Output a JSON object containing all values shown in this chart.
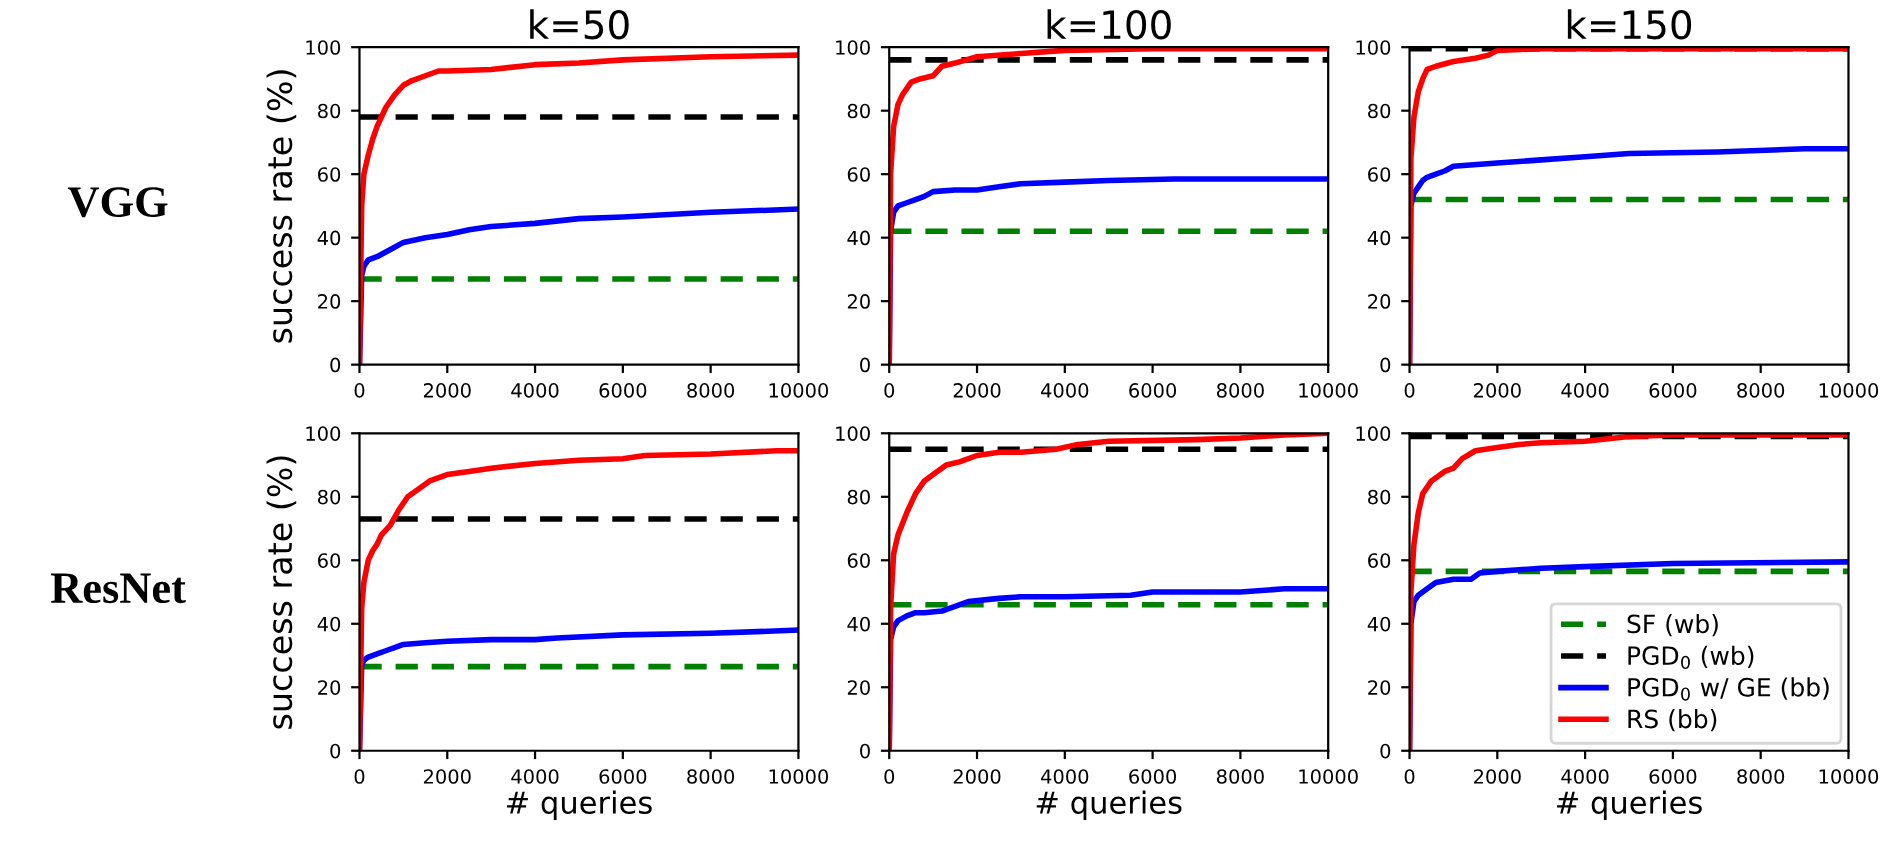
{
  "chart_data": [
    {
      "type": "line",
      "title": "k=50",
      "ylabel": "success rate (%)",
      "annotations": [
        "VGG"
      ],
      "xlim": [
        0,
        10000
      ],
      "ylim": [
        0,
        100
      ],
      "xticks": [
        0,
        2000,
        4000,
        6000,
        8000,
        10000
      ],
      "yticks": [
        0,
        20,
        40,
        60,
        80,
        100
      ],
      "grid": false,
      "legend": false,
      "series": [
        {
          "color": "#008000",
          "line_style": "dashed",
          "x": [
            0,
            10000
          ],
          "values": [
            27,
            27
          ]
        },
        {
          "color": "#000000",
          "line_style": "dashed",
          "x": [
            0,
            10000
          ],
          "values": [
            78,
            78
          ]
        },
        {
          "color": "#0000ff",
          "line_style": "solid",
          "x": [
            0,
            50,
            100,
            200,
            400,
            600,
            800,
            1000,
            1500,
            2000,
            2500,
            3000,
            4000,
            5000,
            6000,
            8000,
            10000
          ],
          "values": [
            0,
            28,
            31,
            33,
            34,
            35.5,
            37,
            38.5,
            40,
            41,
            42.5,
            43.5,
            44.5,
            46,
            46.5,
            48,
            49
          ]
        },
        {
          "color": "#ff0000",
          "line_style": "solid",
          "x": [
            0,
            50,
            100,
            200,
            300,
            400,
            500,
            600,
            800,
            1000,
            1200,
            1500,
            1800,
            2000,
            3000,
            4000,
            5000,
            6000,
            8000,
            10000
          ],
          "values": [
            0,
            50,
            60,
            66,
            71,
            75,
            78,
            81,
            85,
            88,
            89.5,
            91,
            92.5,
            92.5,
            93,
            94.5,
            95,
            96,
            97,
            97.5
          ]
        }
      ]
    },
    {
      "type": "line",
      "title": "k=100",
      "xlim": [
        0,
        10000
      ],
      "ylim": [
        0,
        100
      ],
      "xticks": [
        0,
        2000,
        4000,
        6000,
        8000,
        10000
      ],
      "yticks": [
        0,
        20,
        40,
        60,
        80,
        100
      ],
      "grid": false,
      "legend": false,
      "series": [
        {
          "color": "#008000",
          "line_style": "dashed",
          "x": [
            0,
            10000
          ],
          "values": [
            42,
            42
          ]
        },
        {
          "color": "#000000",
          "line_style": "dashed",
          "x": [
            0,
            10000
          ],
          "values": [
            96,
            96
          ]
        },
        {
          "color": "#0000ff",
          "line_style": "solid",
          "x": [
            0,
            30,
            100,
            200,
            400,
            600,
            800,
            1000,
            1500,
            2000,
            2500,
            3000,
            4000,
            5000,
            6500,
            10000
          ],
          "values": [
            0,
            42,
            48,
            50,
            51,
            52,
            53,
            54.5,
            55,
            55,
            56,
            57,
            57.5,
            58,
            58.5,
            58.5
          ]
        },
        {
          "color": "#ff0000",
          "line_style": "solid",
          "x": [
            0,
            30,
            100,
            200,
            300,
            500,
            700,
            1000,
            1200,
            1500,
            2000,
            3000,
            4000,
            6000,
            10000
          ],
          "values": [
            0,
            60,
            75,
            82,
            85,
            89,
            90,
            91,
            94,
            95,
            97,
            98,
            99,
            99.5,
            99.5
          ]
        }
      ]
    },
    {
      "type": "line",
      "title": "k=150",
      "xlim": [
        0,
        10000
      ],
      "ylim": [
        0,
        100
      ],
      "xticks": [
        0,
        2000,
        4000,
        6000,
        8000,
        10000
      ],
      "yticks": [
        0,
        20,
        40,
        60,
        80,
        100
      ],
      "grid": false,
      "legend": false,
      "series": [
        {
          "color": "#008000",
          "line_style": "dashed",
          "x": [
            0,
            10000
          ],
          "values": [
            52,
            52
          ]
        },
        {
          "color": "#000000",
          "line_style": "dashed",
          "x": [
            0,
            10000
          ],
          "values": [
            99.5,
            99.5
          ]
        },
        {
          "color": "#0000ff",
          "line_style": "solid",
          "x": [
            0,
            30,
            100,
            200,
            300,
            400,
            600,
            800,
            1000,
            2000,
            3000,
            4000,
            5000,
            7000,
            9000,
            10000
          ],
          "values": [
            0,
            50,
            54,
            56,
            58,
            59,
            60,
            61,
            62.5,
            63.5,
            64.5,
            65.5,
            66.5,
            67,
            68,
            68
          ]
        },
        {
          "color": "#ff0000",
          "line_style": "solid",
          "x": [
            0,
            30,
            100,
            200,
            300,
            400,
            600,
            1000,
            1500,
            1800,
            2000,
            3000,
            10000
          ],
          "values": [
            0,
            65,
            78,
            86,
            90,
            93,
            94,
            95.5,
            96.5,
            97.5,
            99,
            99.5,
            99.5
          ]
        }
      ]
    },
    {
      "type": "line",
      "xlabel": "# queries",
      "ylabel": "success rate (%)",
      "annotations": [
        "ResNet"
      ],
      "xlim": [
        0,
        10000
      ],
      "ylim": [
        0,
        100
      ],
      "xticks": [
        0,
        2000,
        4000,
        6000,
        8000,
        10000
      ],
      "yticks": [
        0,
        20,
        40,
        60,
        80,
        100
      ],
      "grid": false,
      "legend": false,
      "series": [
        {
          "color": "#008000",
          "line_style": "dashed",
          "x": [
            0,
            10000
          ],
          "values": [
            26.5,
            26.5
          ]
        },
        {
          "color": "#000000",
          "line_style": "dashed",
          "x": [
            0,
            10000
          ],
          "values": [
            73,
            73
          ]
        },
        {
          "color": "#0000ff",
          "line_style": "solid",
          "x": [
            0,
            50,
            100,
            200,
            400,
            600,
            800,
            1000,
            1500,
            2000,
            3000,
            4000,
            4500,
            6000,
            8000,
            10000
          ],
          "values": [
            0,
            27,
            28.5,
            29.5,
            30.5,
            31.5,
            32.5,
            33.5,
            34,
            34.5,
            35,
            35,
            35.5,
            36.5,
            37,
            38
          ]
        },
        {
          "color": "#ff0000",
          "line_style": "solid",
          "x": [
            0,
            50,
            100,
            200,
            300,
            400,
            500,
            700,
            900,
            1100,
            1300,
            1600,
            2000,
            2500,
            3000,
            4000,
            5000,
            6000,
            6500,
            8000,
            9500,
            10000
          ],
          "values": [
            0,
            45,
            53,
            60,
            63,
            65,
            68,
            71,
            76,
            80,
            82,
            85,
            87,
            88,
            89,
            90.5,
            91.5,
            92,
            93,
            93.5,
            94.5,
            94.5
          ]
        }
      ]
    },
    {
      "type": "line",
      "xlabel": "# queries",
      "xlim": [
        0,
        10000
      ],
      "ylim": [
        0,
        100
      ],
      "xticks": [
        0,
        2000,
        4000,
        6000,
        8000,
        10000
      ],
      "yticks": [
        0,
        20,
        40,
        60,
        80,
        100
      ],
      "grid": false,
      "legend": false,
      "series": [
        {
          "color": "#008000",
          "line_style": "dashed",
          "x": [
            0,
            10000
          ],
          "values": [
            46,
            46
          ]
        },
        {
          "color": "#000000",
          "line_style": "dashed",
          "x": [
            0,
            10000
          ],
          "values": [
            95,
            95
          ]
        },
        {
          "color": "#0000ff",
          "line_style": "solid",
          "x": [
            0,
            30,
            100,
            200,
            400,
            600,
            800,
            1200,
            1500,
            1800,
            2500,
            3000,
            4000,
            5500,
            6000,
            8000,
            9000,
            10000
          ],
          "values": [
            0,
            35,
            39,
            41,
            42.5,
            43.5,
            43.5,
            44,
            45.5,
            47,
            48,
            48.5,
            48.5,
            49,
            50,
            50,
            51,
            51
          ]
        },
        {
          "color": "#ff0000",
          "line_style": "solid",
          "x": [
            0,
            30,
            100,
            200,
            400,
            600,
            800,
            1000,
            1300,
            1600,
            2000,
            2500,
            3000,
            3800,
            4300,
            5000,
            7000,
            8000,
            9000,
            10000
          ],
          "values": [
            0,
            45,
            62,
            68,
            75,
            81,
            85,
            87,
            90,
            91,
            93,
            94,
            94,
            95,
            96.5,
            97.5,
            98,
            98.5,
            99.5,
            100
          ]
        }
      ]
    },
    {
      "type": "line",
      "xlabel": "# queries",
      "xlim": [
        0,
        10000
      ],
      "ylim": [
        0,
        100
      ],
      "xticks": [
        0,
        2000,
        4000,
        6000,
        8000,
        10000
      ],
      "yticks": [
        0,
        20,
        40,
        60,
        80,
        100
      ],
      "grid": false,
      "legend": "bottom right",
      "series": [
        {
          "name": "SF (wb)",
          "color": "#008000",
          "line_style": "dashed",
          "x": [
            0,
            10000
          ],
          "values": [
            56.5,
            56.5
          ]
        },
        {
          "name": "PGD$_{0}$ (wb)",
          "color": "#000000",
          "line_style": "dashed",
          "x": [
            0,
            10000
          ],
          "values": [
            99,
            99
          ]
        },
        {
          "name": "PGD$_{0}$ w/ GE (bb)",
          "color": "#0000ff",
          "line_style": "solid",
          "x": [
            0,
            30,
            100,
            200,
            400,
            600,
            1000,
            1400,
            1600,
            2000,
            3000,
            4000,
            6000,
            10000
          ],
          "values": [
            0,
            40,
            47,
            49,
            51,
            53,
            54,
            54,
            56,
            56.5,
            57.5,
            58,
            59,
            59.5
          ]
        },
        {
          "name": "RS (bb)",
          "color": "#ff0000",
          "line_style": "solid",
          "x": [
            0,
            30,
            100,
            200,
            300,
            500,
            800,
            1000,
            1200,
            1500,
            2000,
            2500,
            3000,
            4000,
            5000,
            6000,
            10000
          ],
          "values": [
            0,
            50,
            65,
            75,
            81,
            85,
            88,
            89,
            92,
            94.5,
            95.5,
            96.5,
            97,
            97.5,
            99,
            99.5,
            99.5
          ]
        }
      ]
    }
  ]
}
